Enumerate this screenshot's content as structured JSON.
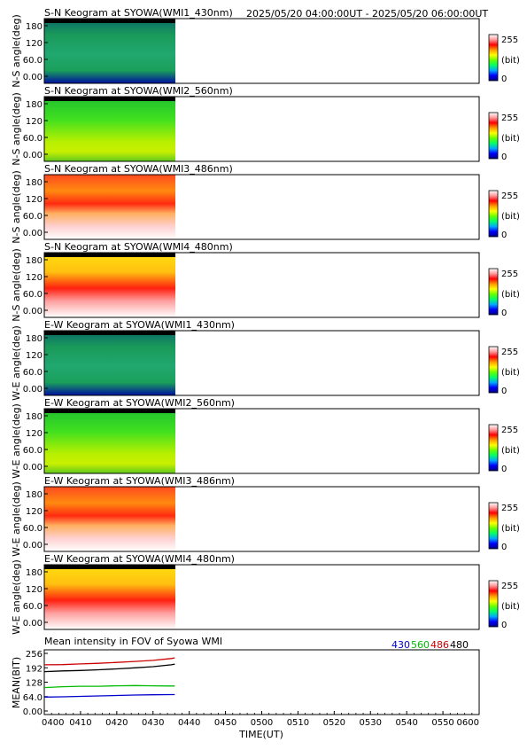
{
  "header": {
    "time_range": "2025/05/20 04:00:00UT - 2025/05/20 06:00:00UT"
  },
  "colorbar": {
    "max_label": "255",
    "unit_label": "(bit)",
    "min_label": "0",
    "stops": [
      "#000080",
      "#0000ff",
      "#00aaff",
      "#00ff66",
      "#66ff00",
      "#ffff00",
      "#ff9900",
      "#ff0000",
      "#ff9999",
      "#ffffff"
    ]
  },
  "keograms": [
    {
      "title": "S-N Keogram at SYOWA(WMI1_430nm)",
      "ylabel": "N-S angle(deg)",
      "palette": "blue"
    },
    {
      "title": "S-N Keogram at SYOWA(WMI2_560nm)",
      "ylabel": "N-S angle(deg)",
      "palette": "green"
    },
    {
      "title": "S-N Keogram at SYOWA(WMI3_486nm)",
      "ylabel": "N-S angle(deg)",
      "palette": "hot"
    },
    {
      "title": "S-N Keogram at SYOWA(WMI4_480nm)",
      "ylabel": "N-S angle(deg)",
      "palette": "hot2"
    },
    {
      "title": "E-W Keogram at SYOWA(WMI1_430nm)",
      "ylabel": "W-E angle(deg)",
      "palette": "blue"
    },
    {
      "title": "E-W Keogram at SYOWA(WMI2_560nm)",
      "ylabel": "W-E angle(deg)",
      "palette": "green"
    },
    {
      "title": "E-W Keogram at SYOWA(WMI3_486nm)",
      "ylabel": "W-E angle(deg)",
      "palette": "hot"
    },
    {
      "title": "E-W Keogram at SYOWA(WMI4_480nm)",
      "ylabel": "W-E angle(deg)",
      "palette": "hot2"
    }
  ],
  "keogram_yticks": [
    "180",
    "120",
    "60.0",
    "0.00"
  ],
  "chart_data": {
    "type": "line",
    "title": "Mean intensity in FOV of Syowa WMI",
    "xlabel": "TIME(UT)",
    "ylabel": "MEAN(BIT)",
    "xlim": [
      "0400",
      "0600"
    ],
    "ylim": [
      0,
      256
    ],
    "x_ticks": [
      "0400",
      "0410",
      "0420",
      "0430",
      "0440",
      "0450",
      "0500",
      "0510",
      "0520",
      "0530",
      "0540",
      "0550",
      "0600"
    ],
    "y_ticks": [
      "256",
      "192",
      "128",
      "64.0",
      "0.00"
    ],
    "x": [
      0,
      5,
      10,
      15,
      20,
      25,
      30,
      35,
      36
    ],
    "series": [
      {
        "name": "430",
        "color": "#0000cc",
        "values": [
          62,
          63,
          65,
          67,
          69,
          71,
          72,
          73,
          73
        ]
      },
      {
        "name": "560",
        "color": "#00bb00",
        "values": [
          104,
          108,
          110,
          110,
          112,
          113,
          112,
          111,
          111
        ]
      },
      {
        "name": "486",
        "color": "#cc0000",
        "values": [
          205,
          206,
          209,
          212,
          216,
          220,
          225,
          233,
          236
        ]
      },
      {
        "name": "480",
        "color": "#000000",
        "values": [
          175,
          178,
          180,
          183,
          187,
          192,
          197,
          205,
          208
        ]
      }
    ]
  }
}
